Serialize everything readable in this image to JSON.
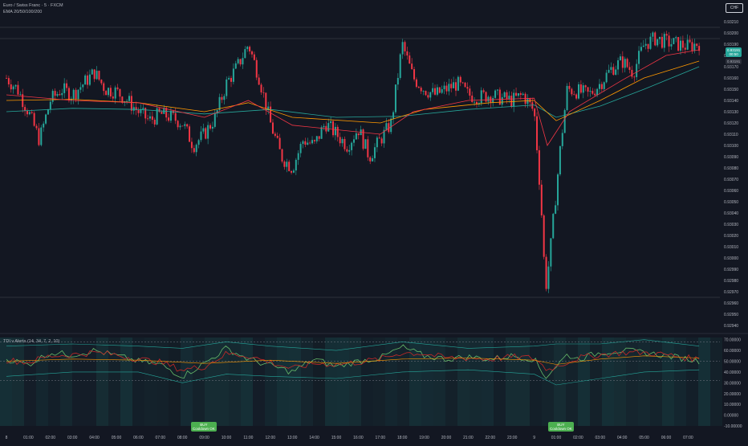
{
  "header": {
    "symbol_title": "Euro / Swiss Franc · 5 · FXCM",
    "ema_legend": "EMA 20/50/100/200",
    "currency": "CHF"
  },
  "indicator": {
    "legend": "TDI v Alerts (14, 34, 7, 2, 10)"
  },
  "price_badge": {
    "price": "0.93191",
    "countdown": "00:50",
    "secondary": "0.93191"
  },
  "colors": {
    "background": "#131722",
    "candle_up": "#26a69a",
    "candle_down": "#f23645",
    "ema_fast": "#f23645",
    "ema_mid": "#ff9800",
    "ema_slow": "#26a69a",
    "tdi_price_line": "#66bb6a",
    "tdi_signal_line": "#c62828",
    "tdi_base_line": "#ff9800",
    "tdi_bands": "#26a69a",
    "buy_label": "#4caf50"
  },
  "signals": [
    {
      "label": "BUY",
      "sub": "Cooldown OK",
      "time": "08:40"
    },
    {
      "label": "BUY",
      "sub": "Cooldown OK",
      "time": "00:55"
    }
  ],
  "chart_data": [
    {
      "type": "candlestick",
      "title": "Euro / Swiss Franc · 5 · FXCM",
      "y_ticks": [
        "0.93210",
        "0.93200",
        "0.93190",
        "0.93180",
        "0.93170",
        "0.93160",
        "0.93150",
        "0.93140",
        "0.93130",
        "0.93120",
        "0.93110",
        "0.93100",
        "0.93090",
        "0.93080",
        "0.93070",
        "0.93060",
        "0.93050",
        "0.93040",
        "0.93030",
        "0.93020",
        "0.93010",
        "0.93000",
        "0.92990",
        "0.92980",
        "0.92970",
        "0.92960",
        "0.92950",
        "0.92940"
      ],
      "ylim": [
        0.92935,
        0.93215
      ],
      "x_ticks": [
        "8",
        "01:00",
        "02:00",
        "03:00",
        "04:00",
        "05:00",
        "06:00",
        "07:00",
        "08:00",
        "09:00",
        "10:00",
        "11:00",
        "12:00",
        "13:00",
        "14:00",
        "15:00",
        "16:00",
        "17:00",
        "18:00",
        "19:00",
        "20:00",
        "21:00",
        "22:00",
        "23:00",
        "9",
        "01:00",
        "02:00",
        "03:00",
        "04:00",
        "05:00",
        "06:00",
        "07:00"
      ],
      "close_path": [
        [
          0,
          0.9316
        ],
        [
          0.5,
          0.9315
        ],
        [
          1,
          0.9313
        ],
        [
          1.5,
          0.93105
        ],
        [
          2,
          0.9314
        ],
        [
          2.5,
          0.9315
        ],
        [
          3,
          0.93145
        ],
        [
          3.5,
          0.93155
        ],
        [
          4,
          0.93165
        ],
        [
          4.5,
          0.9315
        ],
        [
          5,
          0.93148
        ],
        [
          5.5,
          0.9314
        ],
        [
          6,
          0.9313
        ],
        [
          6.5,
          0.93122
        ],
        [
          7,
          0.93128
        ],
        [
          7.5,
          0.93125
        ],
        [
          8,
          0.9312
        ],
        [
          8.5,
          0.931
        ],
        [
          9,
          0.9311
        ],
        [
          9.5,
          0.93125
        ],
        [
          10,
          0.93155
        ],
        [
          10.5,
          0.9317
        ],
        [
          11,
          0.9319
        ],
        [
          11.5,
          0.9316
        ],
        [
          12,
          0.9312
        ],
        [
          12.5,
          0.9309
        ],
        [
          13,
          0.9308
        ],
        [
          13.5,
          0.93105
        ],
        [
          14,
          0.931
        ],
        [
          14.5,
          0.9312
        ],
        [
          15,
          0.9311
        ],
        [
          15.5,
          0.931
        ],
        [
          16,
          0.93115
        ],
        [
          16.5,
          0.9309
        ],
        [
          17,
          0.93105
        ],
        [
          17.5,
          0.9312
        ],
        [
          18,
          0.9319
        ],
        [
          18.5,
          0.9316
        ],
        [
          19,
          0.9315
        ],
        [
          19.5,
          0.93145
        ],
        [
          20,
          0.9315
        ],
        [
          20.5,
          0.93155
        ],
        [
          21,
          0.93145
        ],
        [
          21.5,
          0.93143
        ],
        [
          22,
          0.93145
        ],
        [
          22.5,
          0.93142
        ],
        [
          23,
          0.9314
        ],
        [
          23.5,
          0.93145
        ],
        [
          24,
          0.9313
        ],
        [
          24.2,
          0.9308
        ],
        [
          24.4,
          0.9302
        ],
        [
          24.5,
          0.9297
        ],
        [
          24.7,
          0.93
        ],
        [
          24.9,
          0.9304
        ],
        [
          25.2,
          0.931
        ],
        [
          25.5,
          0.9315
        ],
        [
          26,
          0.93148
        ],
        [
          26.5,
          0.93145
        ],
        [
          27,
          0.93155
        ],
        [
          27.5,
          0.93168
        ],
        [
          28,
          0.93175
        ],
        [
          28.5,
          0.93165
        ],
        [
          29,
          0.9319
        ],
        [
          29.5,
          0.93195
        ],
        [
          30,
          0.93192
        ],
        [
          30.5,
          0.9319
        ],
        [
          31,
          0.93188
        ],
        [
          31.5,
          0.93191
        ]
      ],
      "ema_fast": [
        [
          0,
          0.93145
        ],
        [
          3,
          0.9314
        ],
        [
          6,
          0.93138
        ],
        [
          9,
          0.93125
        ],
        [
          11,
          0.9314
        ],
        [
          13,
          0.93118
        ],
        [
          17,
          0.9311
        ],
        [
          18.5,
          0.9313
        ],
        [
          21,
          0.9314
        ],
        [
          24,
          0.93142
        ],
        [
          24.6,
          0.931
        ],
        [
          25.6,
          0.9313
        ],
        [
          28,
          0.93158
        ],
        [
          30,
          0.9318
        ],
        [
          31.5,
          0.93185
        ]
      ],
      "ema_mid": [
        [
          0,
          0.9314
        ],
        [
          3,
          0.93141
        ],
        [
          6,
          0.93138
        ],
        [
          9,
          0.9313
        ],
        [
          11,
          0.93138
        ],
        [
          13,
          0.93125
        ],
        [
          17,
          0.9312
        ],
        [
          19,
          0.93132
        ],
        [
          22,
          0.93138
        ],
        [
          24,
          0.9314
        ],
        [
          25,
          0.93122
        ],
        [
          27,
          0.9314
        ],
        [
          29,
          0.9316
        ],
        [
          31.5,
          0.93175
        ]
      ],
      "ema_slow": [
        [
          0,
          0.9313
        ],
        [
          3,
          0.93133
        ],
        [
          6,
          0.93132
        ],
        [
          9,
          0.93128
        ],
        [
          12,
          0.93132
        ],
        [
          15,
          0.93125
        ],
        [
          18,
          0.93126
        ],
        [
          21,
          0.93132
        ],
        [
          24,
          0.93136
        ],
        [
          25,
          0.93125
        ],
        [
          27,
          0.93135
        ],
        [
          29,
          0.9315
        ],
        [
          31.5,
          0.9317
        ]
      ],
      "hlines": [
        0.93205,
        0.93195,
        0.92965
      ]
    },
    {
      "type": "line",
      "title": "TDI v Alerts (14, 34, 7, 2, 10)",
      "y_ticks": [
        "70.00000",
        "60.00000",
        "50.00000",
        "40.00000",
        "30.00000",
        "20.00000",
        "10.00000",
        "0.00000",
        "-10.00000"
      ],
      "ylim": [
        -10,
        72
      ],
      "hlines": [
        68,
        50,
        32
      ],
      "series": [
        {
          "values": [
            [
              0,
              52
            ],
            [
              1,
              47
            ],
            [
              2,
              58
            ],
            [
              3,
              56
            ],
            [
              4,
              60
            ],
            [
              5,
              55
            ],
            [
              6,
              50
            ],
            [
              7,
              47
            ],
            [
              8,
              36
            ],
            [
              9,
              48
            ],
            [
              10,
              62
            ],
            [
              11,
              52
            ],
            [
              12,
              46
            ],
            [
              13,
              40
            ],
            [
              14,
              52
            ],
            [
              15,
              45
            ],
            [
              16,
              50
            ],
            [
              17,
              53
            ],
            [
              18,
              63
            ],
            [
              19,
              55
            ],
            [
              20,
              52
            ],
            [
              21,
              54
            ],
            [
              22,
              52
            ],
            [
              23,
              55
            ],
            [
              24,
              52
            ],
            [
              24.5,
              35
            ],
            [
              25.5,
              56
            ],
            [
              26,
              52
            ],
            [
              27,
              58
            ],
            [
              28,
              60
            ],
            [
              29,
              58
            ],
            [
              30,
              55
            ],
            [
              31,
              52
            ],
            [
              31.5,
              50
            ]
          ]
        },
        {
          "values": [
            [
              0,
              51
            ],
            [
              1,
              49
            ],
            [
              2,
              55
            ],
            [
              3,
              56
            ],
            [
              4,
              58
            ],
            [
              5,
              56
            ],
            [
              6,
              52
            ],
            [
              7,
              49
            ],
            [
              8,
              42
            ],
            [
              9,
              45
            ],
            [
              10,
              57
            ],
            [
              11,
              55
            ],
            [
              12,
              49
            ],
            [
              13,
              43
            ],
            [
              14,
              48
            ],
            [
              15,
              47
            ],
            [
              16,
              49
            ],
            [
              17,
              52
            ],
            [
              18,
              58
            ],
            [
              19,
              57
            ],
            [
              20,
              53
            ],
            [
              21,
              53
            ],
            [
              22,
              52
            ],
            [
              23,
              54
            ],
            [
              24,
              53
            ],
            [
              24.6,
              42
            ],
            [
              25.6,
              50
            ],
            [
              26,
              53
            ],
            [
              27,
              56
            ],
            [
              28,
              58
            ],
            [
              29,
              58
            ],
            [
              30,
              56
            ],
            [
              31,
              53
            ],
            [
              31.5,
              52
            ]
          ]
        },
        {
          "values": [
            [
              0,
              50
            ],
            [
              3,
              52
            ],
            [
              6,
              51
            ],
            [
              9,
              48
            ],
            [
              12,
              51
            ],
            [
              15,
              48
            ],
            [
              18,
              52
            ],
            [
              21,
              53
            ],
            [
              24,
              51
            ],
            [
              25,
              47
            ],
            [
              27,
              52
            ],
            [
              29,
              55
            ],
            [
              31.5,
              53
            ]
          ]
        },
        {
          "values": [
            [
              0,
              64
            ],
            [
              3,
              66
            ],
            [
              6,
              64
            ],
            [
              8,
              62
            ],
            [
              10,
              68
            ],
            [
              12,
              64
            ],
            [
              15,
              60
            ],
            [
              18,
              68
            ],
            [
              21,
              62
            ],
            [
              24,
              64
            ],
            [
              25,
              66
            ],
            [
              27,
              66
            ],
            [
              29,
              70
            ],
            [
              31.5,
              64
            ]
          ]
        },
        {
          "values": [
            [
              0,
              36
            ],
            [
              3,
              40
            ],
            [
              6,
              40
            ],
            [
              8,
              30
            ],
            [
              10,
              38
            ],
            [
              12,
              36
            ],
            [
              15,
              34
            ],
            [
              18,
              40
            ],
            [
              21,
              42
            ],
            [
              24,
              38
            ],
            [
              25,
              28
            ],
            [
              27,
              34
            ],
            [
              29,
              40
            ],
            [
              31.5,
              42
            ]
          ]
        }
      ]
    }
  ]
}
